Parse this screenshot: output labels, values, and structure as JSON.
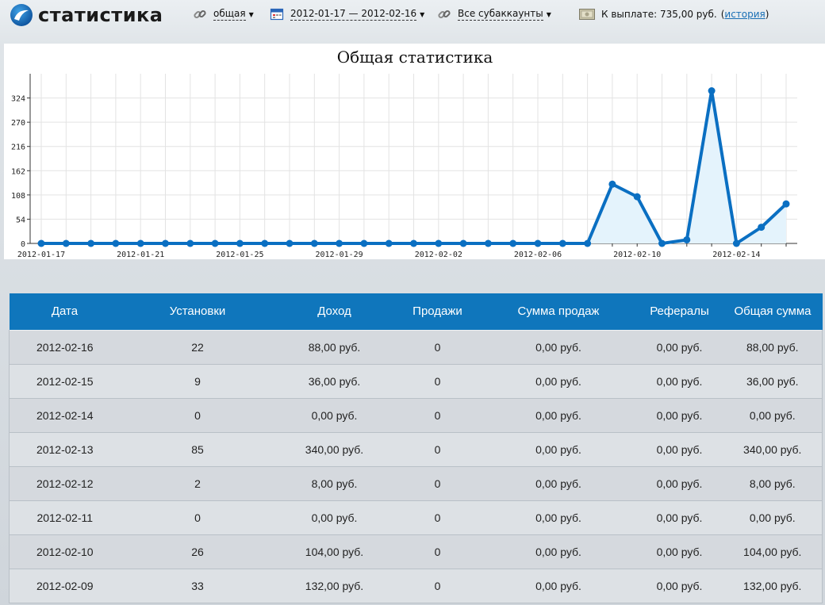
{
  "header": {
    "logo_text": "статистика",
    "filter_label": "общая",
    "date_range": "2012-01-17 — 2012-02-16",
    "subaccounts": "Все субаккаунты",
    "payout_label": "К выплате: 735,00 руб.",
    "history_link": "история",
    "paren_open": "(",
    "paren_close": ")",
    "icons": {
      "logo": "logo-swirl-icon",
      "filter": "chain-link-icon",
      "date": "calendar-icon",
      "subaccounts": "chain-link-icon",
      "payout": "banknote-icon"
    }
  },
  "chart_data": {
    "type": "area",
    "title": "Общая статистика",
    "xlabel": "",
    "ylabel": "",
    "x": [
      "2012-01-17",
      "2012-01-18",
      "2012-01-19",
      "2012-01-20",
      "2012-01-21",
      "2012-01-22",
      "2012-01-23",
      "2012-01-24",
      "2012-01-25",
      "2012-01-26",
      "2012-01-27",
      "2012-01-28",
      "2012-01-29",
      "2012-01-30",
      "2012-01-31",
      "2012-02-01",
      "2012-02-02",
      "2012-02-03",
      "2012-02-04",
      "2012-02-05",
      "2012-02-06",
      "2012-02-07",
      "2012-02-08",
      "2012-02-09",
      "2012-02-10",
      "2012-02-11",
      "2012-02-12",
      "2012-02-13",
      "2012-02-14",
      "2012-02-15",
      "2012-02-16"
    ],
    "series": [
      {
        "values": [
          0,
          0,
          0,
          0,
          0,
          0,
          0,
          0,
          0,
          0,
          0,
          0,
          0,
          0,
          0,
          0,
          0,
          0,
          0,
          0,
          0,
          0,
          0,
          132,
          104,
          0,
          8,
          340,
          0,
          36,
          88
        ]
      }
    ],
    "x_tick_labels": [
      "2012-01-17",
      "2012-01-21",
      "2012-01-25",
      "2012-01-29",
      "2012-02-02",
      "2012-02-06",
      "2012-02-10",
      "2012-02-14"
    ],
    "y_ticks": [
      0,
      54,
      108,
      162,
      216,
      270,
      324
    ],
    "ylim": [
      0,
      378
    ],
    "grid": true,
    "colors": {
      "line": "#0a6fc2",
      "fill": "#e4f3fc",
      "grid": "#e3e3e3"
    }
  },
  "table": {
    "columns": [
      "Дата",
      "Установки",
      "Доход",
      "Продажи",
      "Сумма продаж",
      "Рефералы",
      "Общая сумма"
    ],
    "rows": [
      [
        "2012-02-16",
        "22",
        "88,00 руб.",
        "0",
        "0,00 руб.",
        "0,00 руб.",
        "88,00 руб."
      ],
      [
        "2012-02-15",
        "9",
        "36,00 руб.",
        "0",
        "0,00 руб.",
        "0,00 руб.",
        "36,00 руб."
      ],
      [
        "2012-02-14",
        "0",
        "0,00 руб.",
        "0",
        "0,00 руб.",
        "0,00 руб.",
        "0,00 руб."
      ],
      [
        "2012-02-13",
        "85",
        "340,00 руб.",
        "0",
        "0,00 руб.",
        "0,00 руб.",
        "340,00 руб."
      ],
      [
        "2012-02-12",
        "2",
        "8,00 руб.",
        "0",
        "0,00 руб.",
        "0,00 руб.",
        "8,00 руб."
      ],
      [
        "2012-02-11",
        "0",
        "0,00 руб.",
        "0",
        "0,00 руб.",
        "0,00 руб.",
        "0,00 руб."
      ],
      [
        "2012-02-10",
        "26",
        "104,00 руб.",
        "0",
        "0,00 руб.",
        "0,00 руб.",
        "104,00 руб."
      ],
      [
        "2012-02-09",
        "33",
        "132,00 руб.",
        "0",
        "0,00 руб.",
        "0,00 руб.",
        "132,00 руб."
      ]
    ]
  },
  "colors": {
    "header_bg": "#0f76bc",
    "accent": "#0a6fc2",
    "link": "#1a6fb5"
  }
}
